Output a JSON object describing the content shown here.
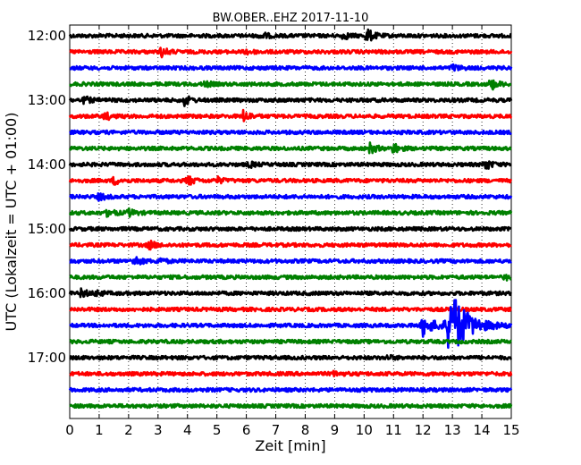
{
  "chart_data": {
    "type": "line",
    "title": "BW.OBER..EHZ 2017-11-10",
    "xlabel": "Zeit  [min]",
    "ylabel": "UTC (Lokalzeit = UTC + 01:00)",
    "xlim": [
      0,
      15
    ],
    "x_ticks": [
      "0",
      "1",
      "2",
      "3",
      "4",
      "5",
      "6",
      "7",
      "8",
      "9",
      "10",
      "11",
      "12",
      "13",
      "14",
      "15"
    ],
    "y_ticks": [
      {
        "label": "12:00",
        "trace": 0
      },
      {
        "label": "13:00",
        "trace": 4
      },
      {
        "label": "14:00",
        "trace": 8
      },
      {
        "label": "15:00",
        "trace": 12
      },
      {
        "label": "16:00",
        "trace": 16
      },
      {
        "label": "17:00",
        "trace": 20
      }
    ],
    "trace_interval_min": 15,
    "trace_colors": [
      "#000000",
      "#ff0000",
      "#0000ff",
      "#008000"
    ],
    "grid": "x-dotted",
    "traces": [
      {
        "start": "12:00",
        "events": [
          {
            "t": 6.5,
            "amp": 0.22
          },
          {
            "t": 9.3,
            "amp": 0.2
          },
          {
            "t": 10.1,
            "amp": 0.45
          }
        ]
      },
      {
        "start": "12:15",
        "events": [
          {
            "t": 3.1,
            "amp": 0.3
          },
          {
            "t": 6.0,
            "amp": 0.15
          }
        ]
      },
      {
        "start": "12:30",
        "events": [
          {
            "t": 13.0,
            "amp": 0.2
          }
        ]
      },
      {
        "start": "12:45",
        "events": [
          {
            "t": 4.6,
            "amp": 0.15
          },
          {
            "t": 14.3,
            "amp": 0.35
          }
        ]
      },
      {
        "start": "13:00",
        "events": [
          {
            "t": 0.5,
            "amp": 0.2
          },
          {
            "t": 3.9,
            "amp": 0.3
          }
        ]
      },
      {
        "start": "13:15",
        "events": [
          {
            "t": 1.2,
            "amp": 0.22
          },
          {
            "t": 5.9,
            "amp": 0.35
          }
        ]
      },
      {
        "start": "13:30",
        "events": []
      },
      {
        "start": "13:45",
        "events": [
          {
            "t": 10.2,
            "amp": 0.3
          },
          {
            "t": 11.0,
            "amp": 0.3
          }
        ]
      },
      {
        "start": "14:00",
        "events": [
          {
            "t": 6.1,
            "amp": 0.15
          },
          {
            "t": 14.1,
            "amp": 0.35
          }
        ]
      },
      {
        "start": "14:15",
        "events": [
          {
            "t": 1.5,
            "amp": 0.22
          },
          {
            "t": 4.0,
            "amp": 0.3
          },
          {
            "t": 5.0,
            "amp": 0.18
          }
        ]
      },
      {
        "start": "14:30",
        "events": [
          {
            "t": 1.0,
            "amp": 0.2
          }
        ]
      },
      {
        "start": "14:45",
        "events": [
          {
            "t": 1.3,
            "amp": 0.25
          },
          {
            "t": 2.0,
            "amp": 0.2
          }
        ]
      },
      {
        "start": "15:00",
        "events": []
      },
      {
        "start": "15:15",
        "events": [
          {
            "t": 2.7,
            "amp": 0.25
          }
        ]
      },
      {
        "start": "15:30",
        "events": [
          {
            "t": 2.2,
            "amp": 0.3
          },
          {
            "t": 3.0,
            "amp": 0.2
          }
        ]
      },
      {
        "start": "15:45",
        "events": [
          {
            "t": 14.8,
            "amp": 0.15
          }
        ]
      },
      {
        "start": "16:00",
        "events": [
          {
            "t": 0.4,
            "amp": 0.25
          },
          {
            "t": 0.9,
            "amp": 0.15
          }
        ]
      },
      {
        "start": "16:15",
        "events": []
      },
      {
        "start": "16:30",
        "events": [
          {
            "t": 12.0,
            "amp": 0.6
          },
          {
            "t": 12.9,
            "amp": 2.4
          }
        ]
      },
      {
        "start": "16:45",
        "events": []
      },
      {
        "start": "17:00",
        "events": [
          {
            "t": 10.8,
            "amp": 0.12
          }
        ]
      },
      {
        "start": "17:15",
        "events": [
          {
            "t": 9.0,
            "amp": 0.15
          }
        ]
      },
      {
        "start": "17:30",
        "events": []
      },
      {
        "start": "17:45",
        "events": []
      }
    ]
  }
}
